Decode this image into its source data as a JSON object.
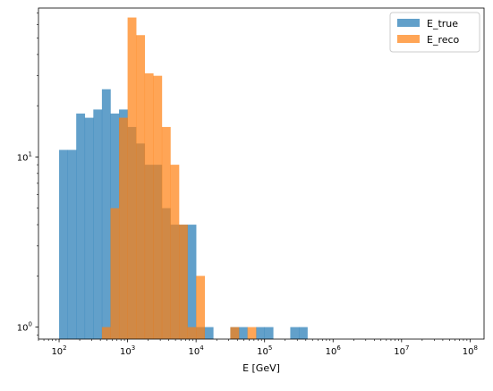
{
  "chart_data": {
    "type": "bar",
    "subtype": "histogram",
    "xscale": "log",
    "yscale": "log",
    "xlabel": "E [GeV]",
    "ylabel": "",
    "title": "",
    "xlim": [
      50,
      160000000
    ],
    "ylim": [
      0.85,
      75
    ],
    "x_tick_labels": [
      {
        "value": 100,
        "base": "10",
        "exp": "2"
      },
      {
        "value": 1000,
        "base": "10",
        "exp": "3"
      },
      {
        "value": 10000,
        "base": "10",
        "exp": "4"
      },
      {
        "value": 100000,
        "base": "10",
        "exp": "5"
      },
      {
        "value": 1000000,
        "base": "10",
        "exp": "6"
      },
      {
        "value": 10000000,
        "base": "10",
        "exp": "7"
      },
      {
        "value": 100000000,
        "base": "10",
        "exp": "8"
      }
    ],
    "y_tick_labels": [
      {
        "value": 1,
        "base": "10",
        "exp": "0"
      },
      {
        "value": 10,
        "base": "10",
        "exp": "1"
      }
    ],
    "bin_log10_start": 2,
    "bin_log10_width": 0.125,
    "legend": {
      "position": "top-right"
    },
    "series": [
      {
        "name": "E_true",
        "color": "#1f77b4",
        "alpha": 0.7,
        "counts": [
          11,
          11,
          18,
          17,
          19,
          25,
          18,
          19,
          15,
          12,
          9,
          9,
          5,
          4,
          4,
          4,
          1,
          1,
          0,
          0,
          1,
          1,
          0,
          1,
          1,
          0,
          0,
          1,
          1
        ]
      },
      {
        "name": "E_reco",
        "color": "#ff7f0e",
        "alpha": 0.7,
        "counts": [
          0,
          0,
          0,
          0,
          0,
          1,
          5,
          17,
          66,
          52,
          31,
          30,
          15,
          9,
          4,
          1,
          2,
          0,
          0,
          0,
          1,
          0,
          1,
          0,
          0,
          0,
          0,
          0,
          0
        ]
      }
    ]
  }
}
